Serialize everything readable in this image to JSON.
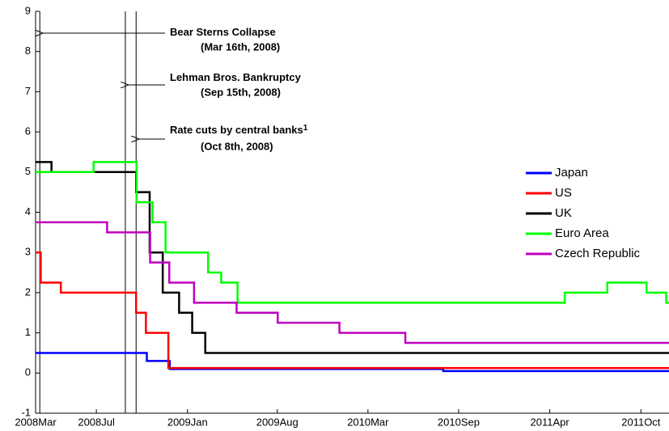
{
  "chart_data": {
    "type": "line",
    "step": true,
    "xlim": [
      "2008-03-07",
      "2011-11-22"
    ],
    "xticks": [
      {
        "value": "2008-03-07",
        "label": "2008Mar"
      },
      {
        "value": "2008-07-15",
        "label": "2008Jul"
      },
      {
        "value": "2009-01-26",
        "label": "2009Jan"
      },
      {
        "value": "2009-08-06",
        "label": "2009Aug"
      },
      {
        "value": "2010-02-16",
        "label": "2010Mar"
      },
      {
        "value": "2010-08-29",
        "label": "2010Sep"
      },
      {
        "value": "2011-03-12",
        "label": "2011Apr"
      },
      {
        "value": "2011-09-23",
        "label": "2011Oct"
      }
    ],
    "ylim": [
      -1,
      9
    ],
    "yticks": [
      -1,
      0,
      1,
      2,
      3,
      4,
      5,
      6,
      7,
      8,
      9
    ],
    "grid": false,
    "legend": "right",
    "annotations": [
      {
        "date": "2008-03-16",
        "text": "Bear Sterns Collapse",
        "sub": "(Mar 16th, 2008)"
      },
      {
        "date": "2008-09-15",
        "text": "Lehman Bros. Bankruptcy",
        "sub": "(Sep 15th, 2008)"
      },
      {
        "date": "2008-10-08",
        "text": "Rate cuts by central banks",
        "sup": "1",
        "sub": "(Oct 8th, 2008)"
      }
    ],
    "series": [
      {
        "name": "Japan",
        "color": "#0000ff",
        "x": [
          "2008-03-07",
          "2008-10-31",
          "2008-12-19",
          "2010-07-27",
          "2011-11-22"
        ],
        "values": [
          0.5,
          0.3,
          0.1,
          0.05,
          0.05
        ]
      },
      {
        "name": "US",
        "color": "#ff0000",
        "x": [
          "2008-03-07",
          "2008-03-18",
          "2008-04-30",
          "2008-10-08",
          "2008-10-29",
          "2008-12-16",
          "2011-11-22"
        ],
        "values": [
          3.0,
          2.25,
          2.0,
          1.5,
          1.0,
          0.125,
          0.125
        ]
      },
      {
        "name": "UK",
        "color": "#000000",
        "x": [
          "2008-03-07",
          "2008-04-10",
          "2008-10-08",
          "2008-11-06",
          "2008-12-04",
          "2009-01-08",
          "2009-02-05",
          "2009-03-05",
          "2011-11-22"
        ],
        "values": [
          5.25,
          5.0,
          4.5,
          3.0,
          2.0,
          1.5,
          1.0,
          0.5,
          0.5
        ]
      },
      {
        "name": "Euro Area",
        "color": "#00ff00",
        "x": [
          "2008-03-07",
          "2008-07-09",
          "2008-10-09",
          "2008-11-12",
          "2008-12-10",
          "2009-03-11",
          "2009-04-08",
          "2009-05-13",
          "2011-04-13",
          "2011-07-13",
          "2011-10-05",
          "2011-11-16",
          "2011-11-22"
        ],
        "values": [
          5.0,
          5.25,
          4.25,
          3.75,
          3.0,
          2.5,
          2.25,
          1.75,
          2.0,
          2.25,
          2.0,
          1.75,
          1.75
        ]
      },
      {
        "name": "Czech Republic",
        "color": "#bf00bf",
        "x": [
          "2008-03-07",
          "2008-08-07",
          "2008-11-07",
          "2008-12-18",
          "2009-02-09",
          "2009-05-11",
          "2009-08-07",
          "2009-12-17",
          "2010-05-07",
          "2011-11-22"
        ],
        "values": [
          3.75,
          3.5,
          2.75,
          2.25,
          1.75,
          1.5,
          1.25,
          1.0,
          0.75,
          0.75
        ]
      }
    ]
  }
}
